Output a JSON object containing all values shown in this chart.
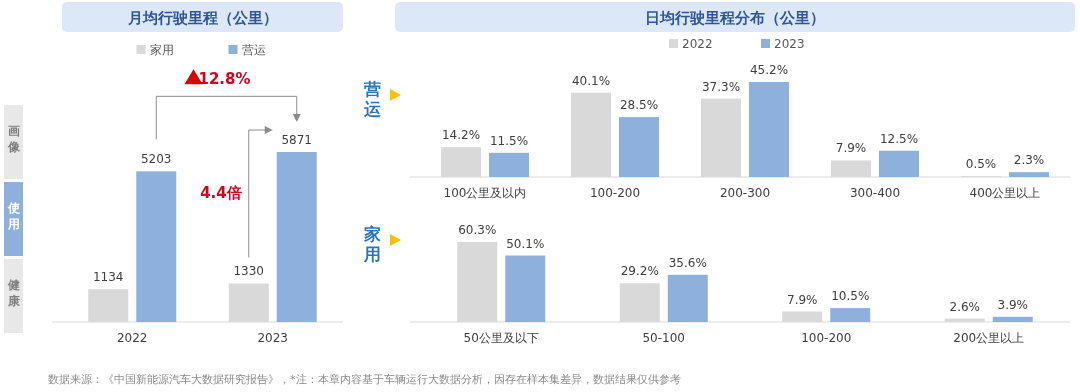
{
  "chart_data": [
    {
      "type": "bar",
      "title": "月均行驶里程（公里）",
      "categories": [
        "2022",
        "2023"
      ],
      "series": [
        {
          "name": "家用",
          "color": "#d9d9d9",
          "values": [
            1134,
            1330
          ]
        },
        {
          "name": "营运",
          "color": "#8eb0dc",
          "values": [
            5203,
            5871
          ]
        }
      ],
      "data_labels": true,
      "legend": "top",
      "annotations": [
        "12.8%",
        "4.4倍",
        "画像",
        "使用",
        "健康",
        "数据来源：《中国新能源汽车大数据研究报告》，*注：本章内容基于车辆运行大数据分析，因存在样本集差异，数据结果仅供参考"
      ]
    },
    {
      "type": "bar",
      "title": "日均行驶里程分布（公里）",
      "ylabel": "营运",
      "categories": [
        "100公里及以内",
        "100-200",
        "200-300",
        "300-400",
        "400公里以上"
      ],
      "series": [
        {
          "name": "2022",
          "color": "#d9d9d9",
          "values": [
            14.2,
            40.1,
            37.3,
            7.9,
            0.5
          ],
          "value_labels": [
            "14.2%",
            "40.1%",
            "37.3%",
            "7.9%",
            "0.5%"
          ]
        },
        {
          "name": "2023",
          "color": "#8eb0dc",
          "values": [
            11.5,
            28.5,
            45.2,
            12.5,
            2.3
          ],
          "value_labels": [
            "11.5%",
            "28.5%",
            "45.2%",
            "12.5%",
            "2.3%"
          ]
        }
      ],
      "legend": "top"
    },
    {
      "type": "bar",
      "ylabel": "家用",
      "categories": [
        "50公里及以下",
        "50-100",
        "100-200",
        "200公里以上"
      ],
      "series": [
        {
          "color": "#d9d9d9",
          "values": [
            60.3,
            29.2,
            7.9,
            2.6
          ],
          "value_labels": [
            "60.3%",
            "29.2%",
            "7.9%",
            "2.6%"
          ]
        },
        {
          "color": "#8eb0dc",
          "values": [
            50.1,
            35.6,
            10.5,
            3.9
          ],
          "value_labels": [
            "50.1%",
            "35.6%",
            "10.5%",
            "3.9%"
          ]
        }
      ]
    }
  ]
}
